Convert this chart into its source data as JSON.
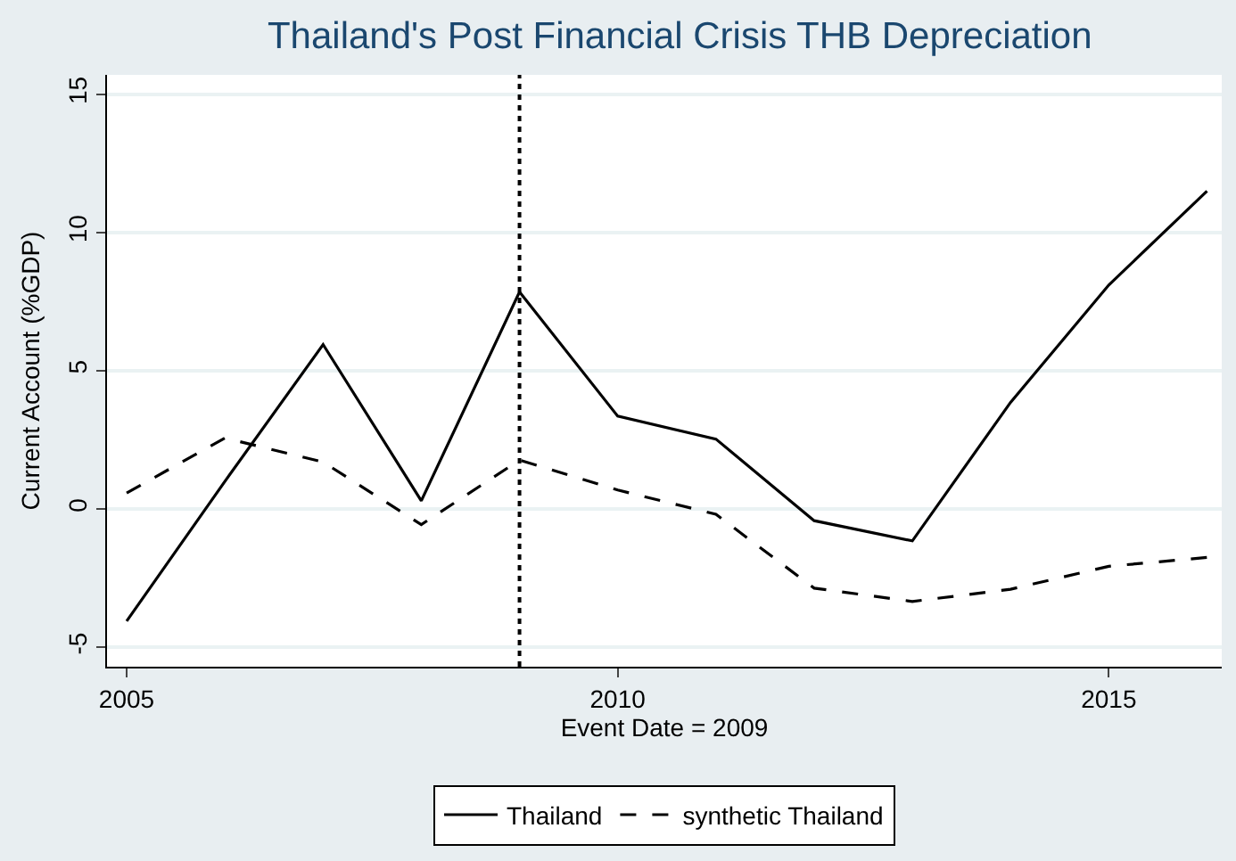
{
  "chart_data": {
    "type": "line",
    "title": "Thailand's Post Financial Crisis THB Depreciation",
    "xlabel": "Event Date = 2009",
    "ylabel": "Current Account (%GDP)",
    "x": [
      2005,
      2006,
      2007,
      2008,
      2009,
      2010,
      2011,
      2012,
      2013,
      2014,
      2015,
      2016
    ],
    "series": [
      {
        "name": "Thailand",
        "color": "#000000",
        "line_style": "solid",
        "values": [
          -4.05,
          1.0,
          5.95,
          0.3,
          7.85,
          3.36,
          2.53,
          -0.42,
          -1.15,
          3.86,
          8.1,
          11.5
        ]
      },
      {
        "name": "synthetic Thailand",
        "color": "#000000",
        "line_style": "dashed",
        "values": [
          0.58,
          2.57,
          1.7,
          -0.56,
          1.77,
          0.69,
          -0.19,
          -2.86,
          -3.34,
          -2.9,
          -2.07,
          -1.75
        ]
      }
    ],
    "xlim": [
      2004.8,
      2016.15
    ],
    "xticks": [
      2005,
      2010,
      2015
    ],
    "ylim": [
      -5.7,
      15.7
    ],
    "yticks": [
      -5,
      0,
      5,
      10,
      15
    ],
    "grid": "y",
    "legend": "bottom",
    "marker": "none",
    "ref_lines": [
      {
        "axis": "x",
        "value": 2009,
        "line_style": "dotted",
        "color": "#000000"
      }
    ]
  }
}
